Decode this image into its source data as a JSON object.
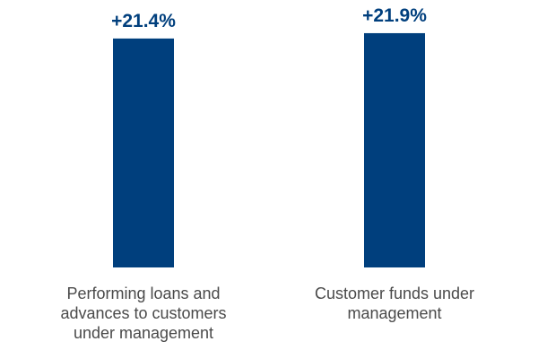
{
  "chart_data": {
    "type": "bar",
    "categories": [
      [
        "Performing loans and",
        "advances to customers",
        "under management"
      ],
      [
        "Customer funds under",
        "management"
      ]
    ],
    "values": [
      21.4,
      21.9
    ],
    "value_labels": [
      "+21.4%",
      "+21.9%"
    ],
    "ylim": [
      0,
      25
    ],
    "bar_color": "#003f7d",
    "label_color": "#003f7d",
    "grid": false
  }
}
